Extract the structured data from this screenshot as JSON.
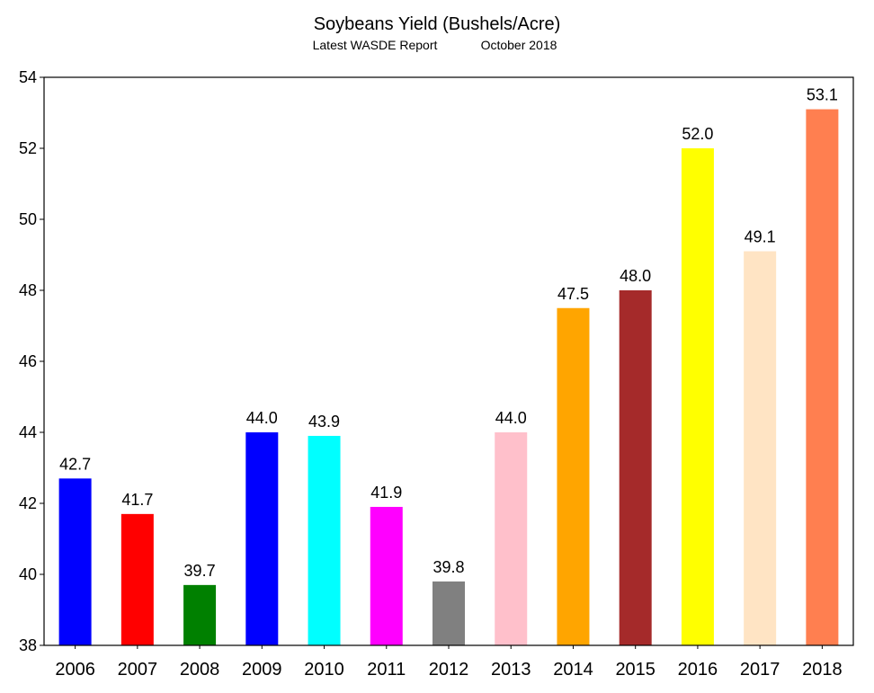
{
  "chart_data": {
    "type": "bar",
    "title": "Soybeans Yield (Bushels/Acre)",
    "subtitle_left": "Latest WASDE Report",
    "subtitle_right": "October 2018",
    "xlabel": "",
    "ylabel": "",
    "ylim": [
      38,
      54
    ],
    "yticks": [
      38,
      40,
      42,
      44,
      46,
      48,
      50,
      52,
      54
    ],
    "grid": false,
    "categories": [
      "2006",
      "2007",
      "2008",
      "2009",
      "2010",
      "2011",
      "2012",
      "2013",
      "2014",
      "2015",
      "2016",
      "2017",
      "2018"
    ],
    "values": [
      42.7,
      41.7,
      39.7,
      44.0,
      43.9,
      41.9,
      39.8,
      44.0,
      47.5,
      48.0,
      52.0,
      49.1,
      53.1
    ],
    "data_labels": [
      "42.7",
      "41.7",
      "39.7",
      "44.0",
      "43.9",
      "41.9",
      "39.8",
      "44.0",
      "47.5",
      "48.0",
      "52.0",
      "49.1",
      "53.1"
    ],
    "colors": [
      "#0000ff",
      "#ff0000",
      "#008000",
      "#0000ff",
      "#00ffff",
      "#ff00ff",
      "#808080",
      "#ffc0cb",
      "#ffa500",
      "#a52a2a",
      "#ffff00",
      "#ffe4c4",
      "#ff7f50"
    ]
  }
}
